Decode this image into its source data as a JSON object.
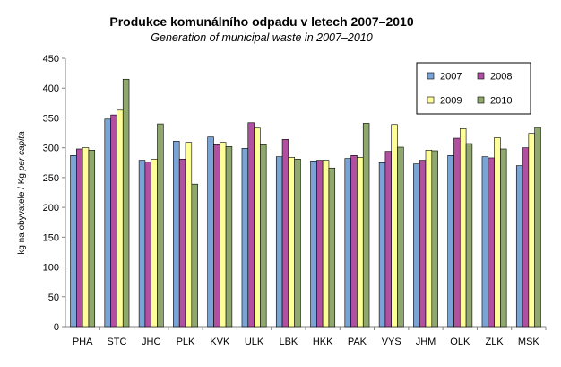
{
  "chart_data": {
    "type": "bar",
    "title": "Produkce komunálního odpadu v letech 2007–2010",
    "subtitle": "Generation of municipal waste in 2007–2010",
    "ylabel_main": "kg na obyvatele / Kg ",
    "ylabel_italic": "per capita",
    "xlabel": "",
    "ylim": [
      0,
      450
    ],
    "ytick_step": 50,
    "grid": false,
    "legend_position": "top-right",
    "categories": [
      "PHA",
      "STC",
      "JHC",
      "PLK",
      "KVK",
      "ULK",
      "LBK",
      "HKK",
      "PAK",
      "VYS",
      "JHM",
      "OLK",
      "ZLK",
      "MSK"
    ],
    "series": [
      {
        "name": "2007",
        "color": "#7aa3d6",
        "values": [
          287,
          348,
          279,
          311,
          318,
          299,
          285,
          278,
          282,
          275,
          273,
          287,
          285,
          270
        ]
      },
      {
        "name": "2008",
        "color": "#b14fa0",
        "values": [
          298,
          355,
          276,
          281,
          305,
          342,
          314,
          279,
          287,
          294,
          279,
          316,
          283,
          300
        ]
      },
      {
        "name": "2009",
        "color": "#ffff99",
        "values": [
          300,
          363,
          281,
          309,
          309,
          333,
          284,
          279,
          284,
          339,
          296,
          332,
          317,
          324
        ]
      },
      {
        "name": "2010",
        "color": "#8fa86e",
        "values": [
          296,
          415,
          340,
          239,
          302,
          305,
          281,
          266,
          341,
          301,
          295,
          307,
          298,
          334
        ]
      }
    ]
  }
}
